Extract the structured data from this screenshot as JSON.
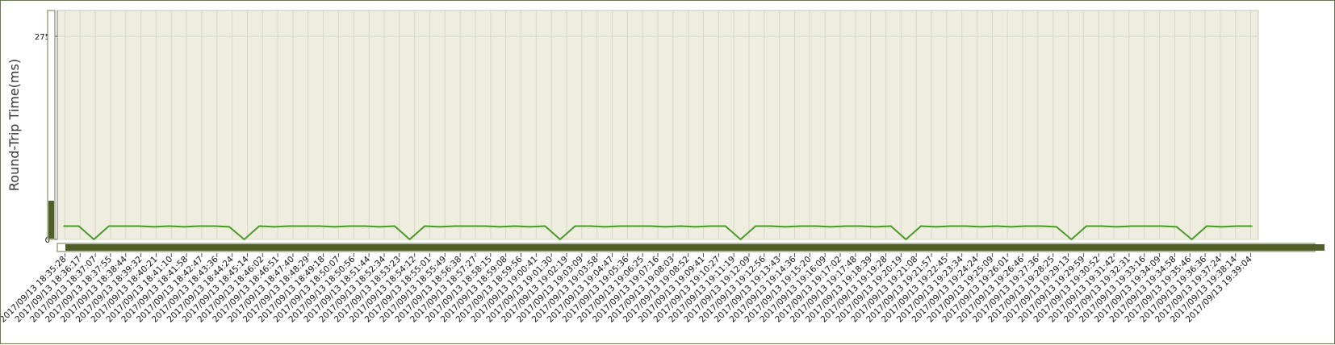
{
  "colors": {
    "plot_bg": "#eeede0",
    "grid": "#d8d9c6",
    "series": "#4a9a2a",
    "scrollbar": "#4f5f27",
    "frame": "#6b7a4c"
  },
  "chart_data": {
    "type": "line",
    "title": "",
    "xlabel": "",
    "ylabel": "Round-Trip Time(ms)",
    "ylim": [
      0,
      310
    ],
    "yticks": [
      0,
      275
    ],
    "grid": true,
    "legend": "none",
    "x_tick_labels": [
      "2017/09/13 18:35:28",
      "2017/09/13 18:36:17",
      "2017/09/13 18:37:07",
      "2017/09/13 18:37:55",
      "2017/09/13 18:38:44",
      "2017/09/13 18:39:32",
      "2017/09/13 18:40:21",
      "2017/09/13 18:41:10",
      "2017/09/13 18:41:58",
      "2017/09/13 18:42:47",
      "2017/09/13 18:43:36",
      "2017/09/13 18:44:24",
      "2017/09/13 18:45:14",
      "2017/09/13 18:46:02",
      "2017/09/13 18:46:51",
      "2017/09/13 18:47:40",
      "2017/09/13 18:48:29",
      "2017/09/13 18:49:18",
      "2017/09/13 18:50:07",
      "2017/09/13 18:50:56",
      "2017/09/13 18:51:44",
      "2017/09/13 18:52:34",
      "2017/09/13 18:53:23",
      "2017/09/13 18:54:12",
      "2017/09/13 18:55:01",
      "2017/09/13 18:55:49",
      "2017/09/13 18:56:38",
      "2017/09/13 18:57:27",
      "2017/09/13 18:58:15",
      "2017/09/13 18:59:08",
      "2017/09/13 18:59:56",
      "2017/09/13 19:00:41",
      "2017/09/13 19:01:30",
      "2017/09/13 19:02:19",
      "2017/09/13 19:03:09",
      "2017/09/13 19:03:58",
      "2017/09/13 19:04:47",
      "2017/09/13 19:05:36",
      "2017/09/13 19:06:25",
      "2017/09/13 19:07:16",
      "2017/09/13 19:08:03",
      "2017/09/13 19:08:52",
      "2017/09/13 19:09:41",
      "2017/09/13 19:10:27",
      "2017/09/13 19:11:19",
      "2017/09/13 19:12:09",
      "2017/09/13 19:12:56",
      "2017/09/13 19:13:43",
      "2017/09/13 19:14:36",
      "2017/09/13 19:15:20",
      "2017/09/13 19:16:09",
      "2017/09/13 19:17:02",
      "2017/09/13 19:17:48",
      "2017/09/13 19:18:39",
      "2017/09/13 19:19:28",
      "2017/09/13 19:20:19",
      "2017/09/13 19:21:08",
      "2017/09/13 19:21:57",
      "2017/09/13 19:22:45",
      "2017/09/13 19:23:34",
      "2017/09/13 19:24:24",
      "2017/09/13 19:25:09",
      "2017/09/13 19:26:01",
      "2017/09/13 19:26:46",
      "2017/09/13 19:27:36",
      "2017/09/13 19:28:25",
      "2017/09/13 19:29:13",
      "2017/09/13 19:29:59",
      "2017/09/13 19:30:52",
      "2017/09/13 19:31:42",
      "2017/09/13 19:32:31",
      "2017/09/13 19:33:16",
      "2017/09/13 19:34:09",
      "2017/09/13 19:34:58",
      "2017/09/13 19:35:46",
      "2017/09/13 19:36:36",
      "2017/09/13 19:37:24",
      "2017/09/13 19:38:14",
      "2017/09/13 19:39:04"
    ],
    "series": [
      {
        "x": [
          0,
          3,
          6,
          9,
          12,
          15,
          18,
          21,
          24,
          27,
          30,
          33,
          36,
          39,
          42,
          45,
          48,
          51,
          54,
          57,
          60,
          63,
          66,
          69,
          72,
          75,
          78,
          81,
          84,
          87,
          90,
          93,
          96,
          99,
          102,
          105,
          108,
          111,
          114,
          117,
          120,
          123,
          126,
          129,
          132,
          135,
          138,
          141,
          144,
          147,
          150,
          153,
          156,
          159,
          162,
          165,
          168,
          171,
          174,
          177,
          180,
          183,
          186,
          189,
          192,
          195,
          198,
          201,
          204,
          207,
          210,
          213,
          216,
          219,
          222,
          225,
          228,
          231,
          234,
          237
        ],
        "values": [
          18,
          18,
          0,
          18,
          18,
          18,
          17,
          18,
          17,
          18,
          18,
          17,
          0,
          18,
          17,
          18,
          18,
          18,
          17,
          18,
          18,
          17,
          18,
          0,
          18,
          17,
          18,
          18,
          18,
          17,
          18,
          17,
          18,
          0,
          18,
          18,
          17,
          18,
          18,
          18,
          17,
          18,
          17,
          18,
          18,
          0,
          18,
          18,
          17,
          18,
          18,
          17,
          18,
          18,
          17,
          18,
          0,
          18,
          17,
          18,
          18,
          17,
          18,
          17,
          18,
          18,
          17,
          0,
          18,
          18,
          17,
          18,
          18,
          18,
          17,
          0,
          18,
          17,
          18,
          18
        ]
      }
    ]
  }
}
